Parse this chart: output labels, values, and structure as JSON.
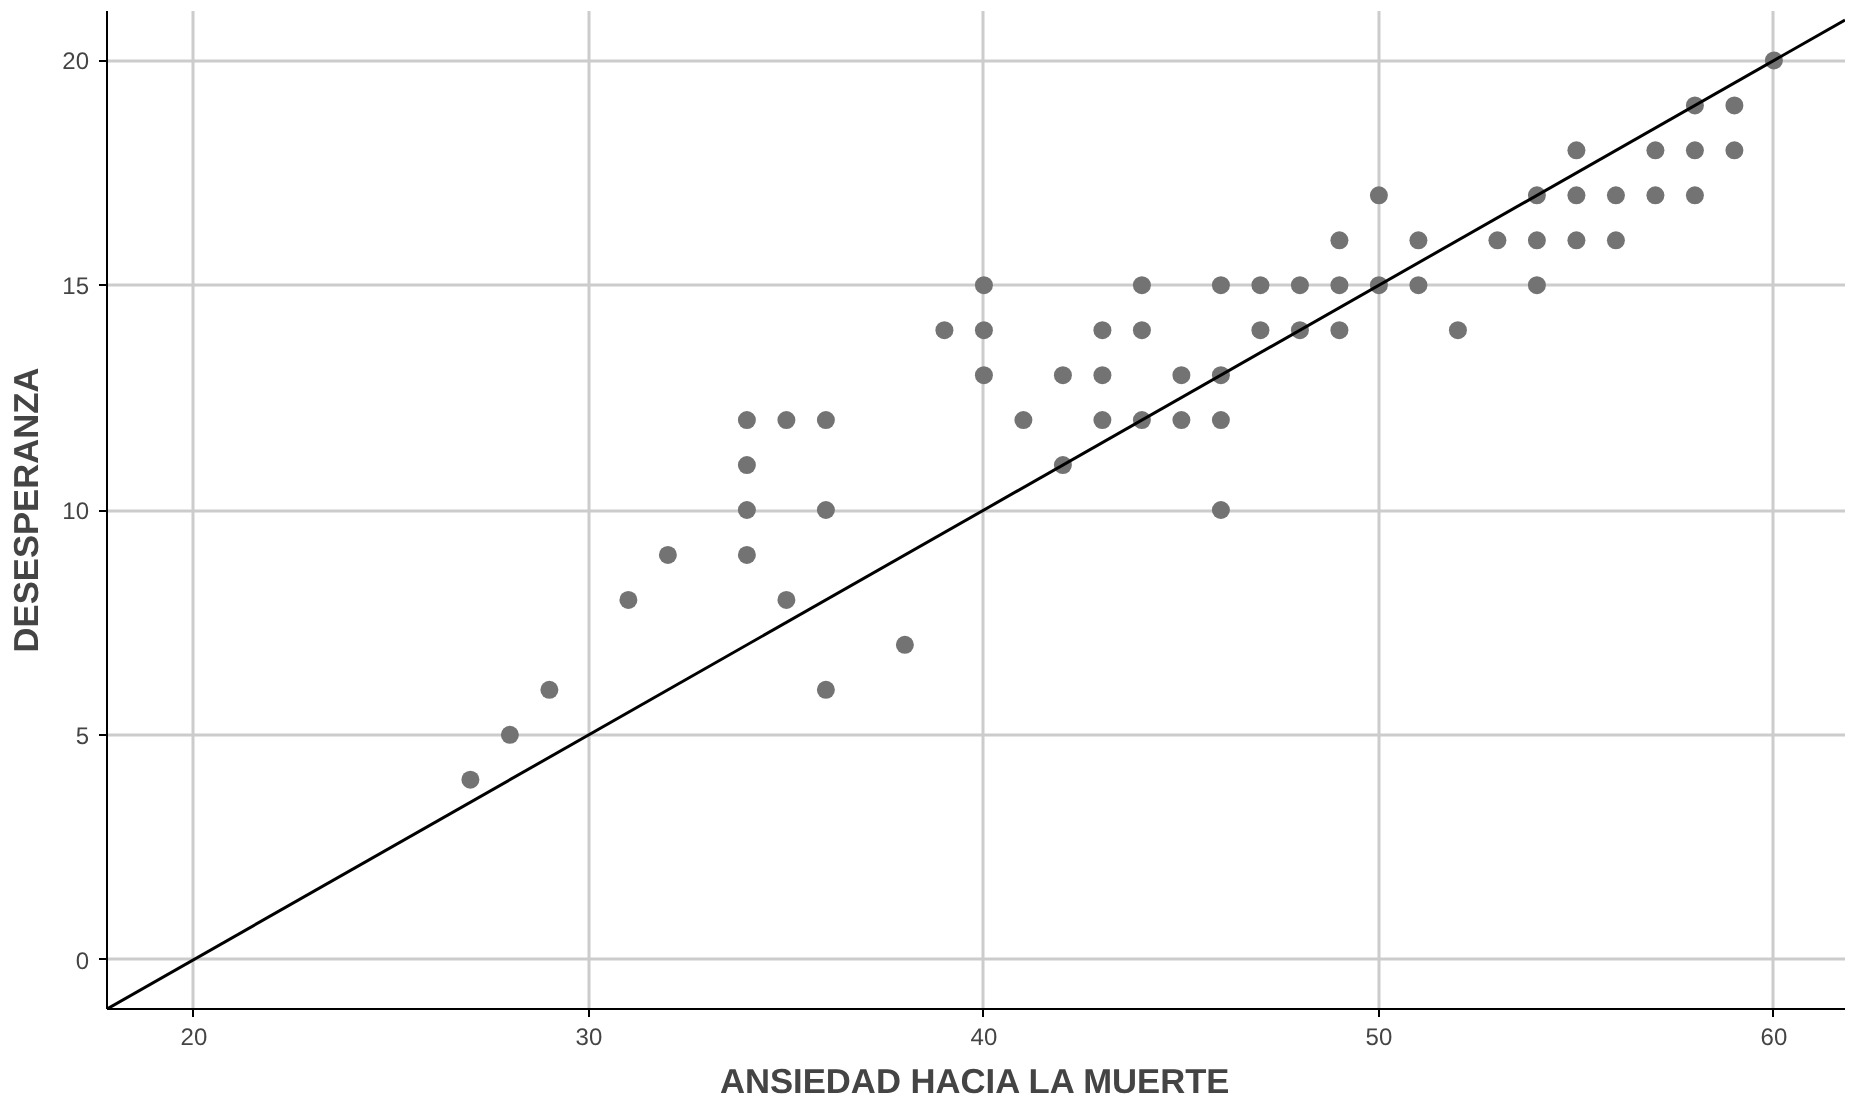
{
  "chart_data": {
    "type": "scatter",
    "xlabel": "ANSIEDAD HACIA LA MUERTE",
    "ylabel": "DESESPERANZA",
    "xlim": [
      17.8,
      61.8
    ],
    "ylim": [
      -1.1,
      21.1
    ],
    "xticks": [
      20,
      30,
      40,
      50,
      60
    ],
    "yticks": [
      0,
      5,
      10,
      15,
      20
    ],
    "grid": true,
    "marker": "circle",
    "series": [
      {
        "color": "#737373",
        "x": [
          27,
          28,
          29,
          31,
          32,
          34,
          34,
          34,
          34,
          35,
          35,
          36,
          36,
          36,
          38,
          39,
          40,
          40,
          40,
          41,
          42,
          42,
          43,
          43,
          43,
          44,
          44,
          44,
          45,
          45,
          46,
          46,
          46,
          46,
          47,
          47,
          48,
          48,
          49,
          49,
          49,
          50,
          50,
          51,
          51,
          52,
          53,
          54,
          54,
          54,
          55,
          55,
          55,
          56,
          56,
          57,
          57,
          58,
          58,
          58,
          59,
          59,
          60
        ],
        "values": [
          4,
          5,
          6,
          8,
          9,
          12,
          11,
          10,
          9,
          12,
          8,
          12,
          10,
          6,
          7,
          14,
          15,
          14,
          13,
          12,
          13,
          11,
          14,
          13,
          12,
          15,
          14,
          12,
          13,
          12,
          15,
          13,
          12,
          10,
          15,
          14,
          15,
          14,
          16,
          15,
          14,
          17,
          15,
          16,
          15,
          14,
          16,
          17,
          16,
          15,
          18,
          17,
          16,
          17,
          16,
          18,
          17,
          19,
          18,
          17,
          19,
          18,
          20
        ]
      },
      {
        "type": "line",
        "color": "#000000",
        "marker": "none",
        "x": [
          17.8,
          61.8
        ],
        "values": [
          -1.1,
          20.9
        ]
      }
    ]
  }
}
